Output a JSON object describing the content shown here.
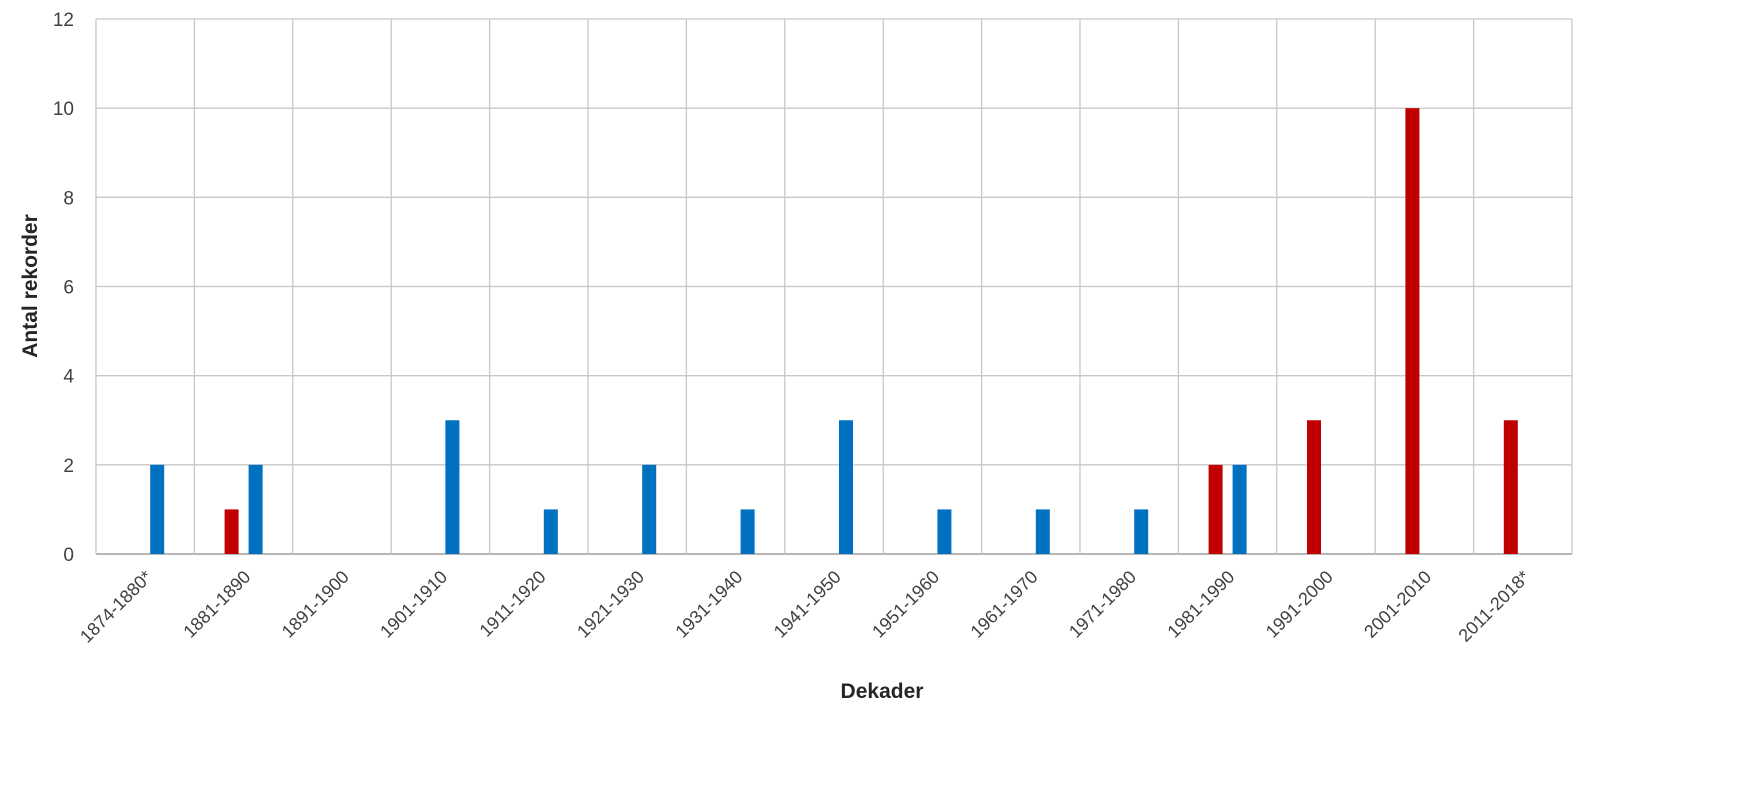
{
  "chart_data": {
    "type": "bar",
    "xlabel": "Dekader",
    "ylabel": "Antal rekorder",
    "ylim": [
      0,
      12
    ],
    "yticks": [
      "0",
      "2",
      "4",
      "6",
      "8",
      "10",
      "12"
    ],
    "grid": true,
    "categories": [
      "1874-1880*",
      "1881-1890",
      "1891-1900",
      "1901-1910",
      "1911-1920",
      "1921-1930",
      "1931-1940",
      "1941-1950",
      "1951-1960",
      "1961-1970",
      "1971-1980",
      "1981-1990",
      "1991-2000",
      "2001-2010",
      "2011-2018*"
    ],
    "series": [
      {
        "color": "#c00000",
        "values": [
          0,
          1,
          0,
          0,
          0,
          0,
          0,
          0,
          0,
          0,
          0,
          2,
          3,
          10,
          3
        ]
      },
      {
        "color": "#0070c0",
        "values": [
          2,
          2,
          0,
          3,
          1,
          2,
          1,
          3,
          1,
          1,
          1,
          2,
          0,
          0,
          0
        ]
      }
    ]
  }
}
